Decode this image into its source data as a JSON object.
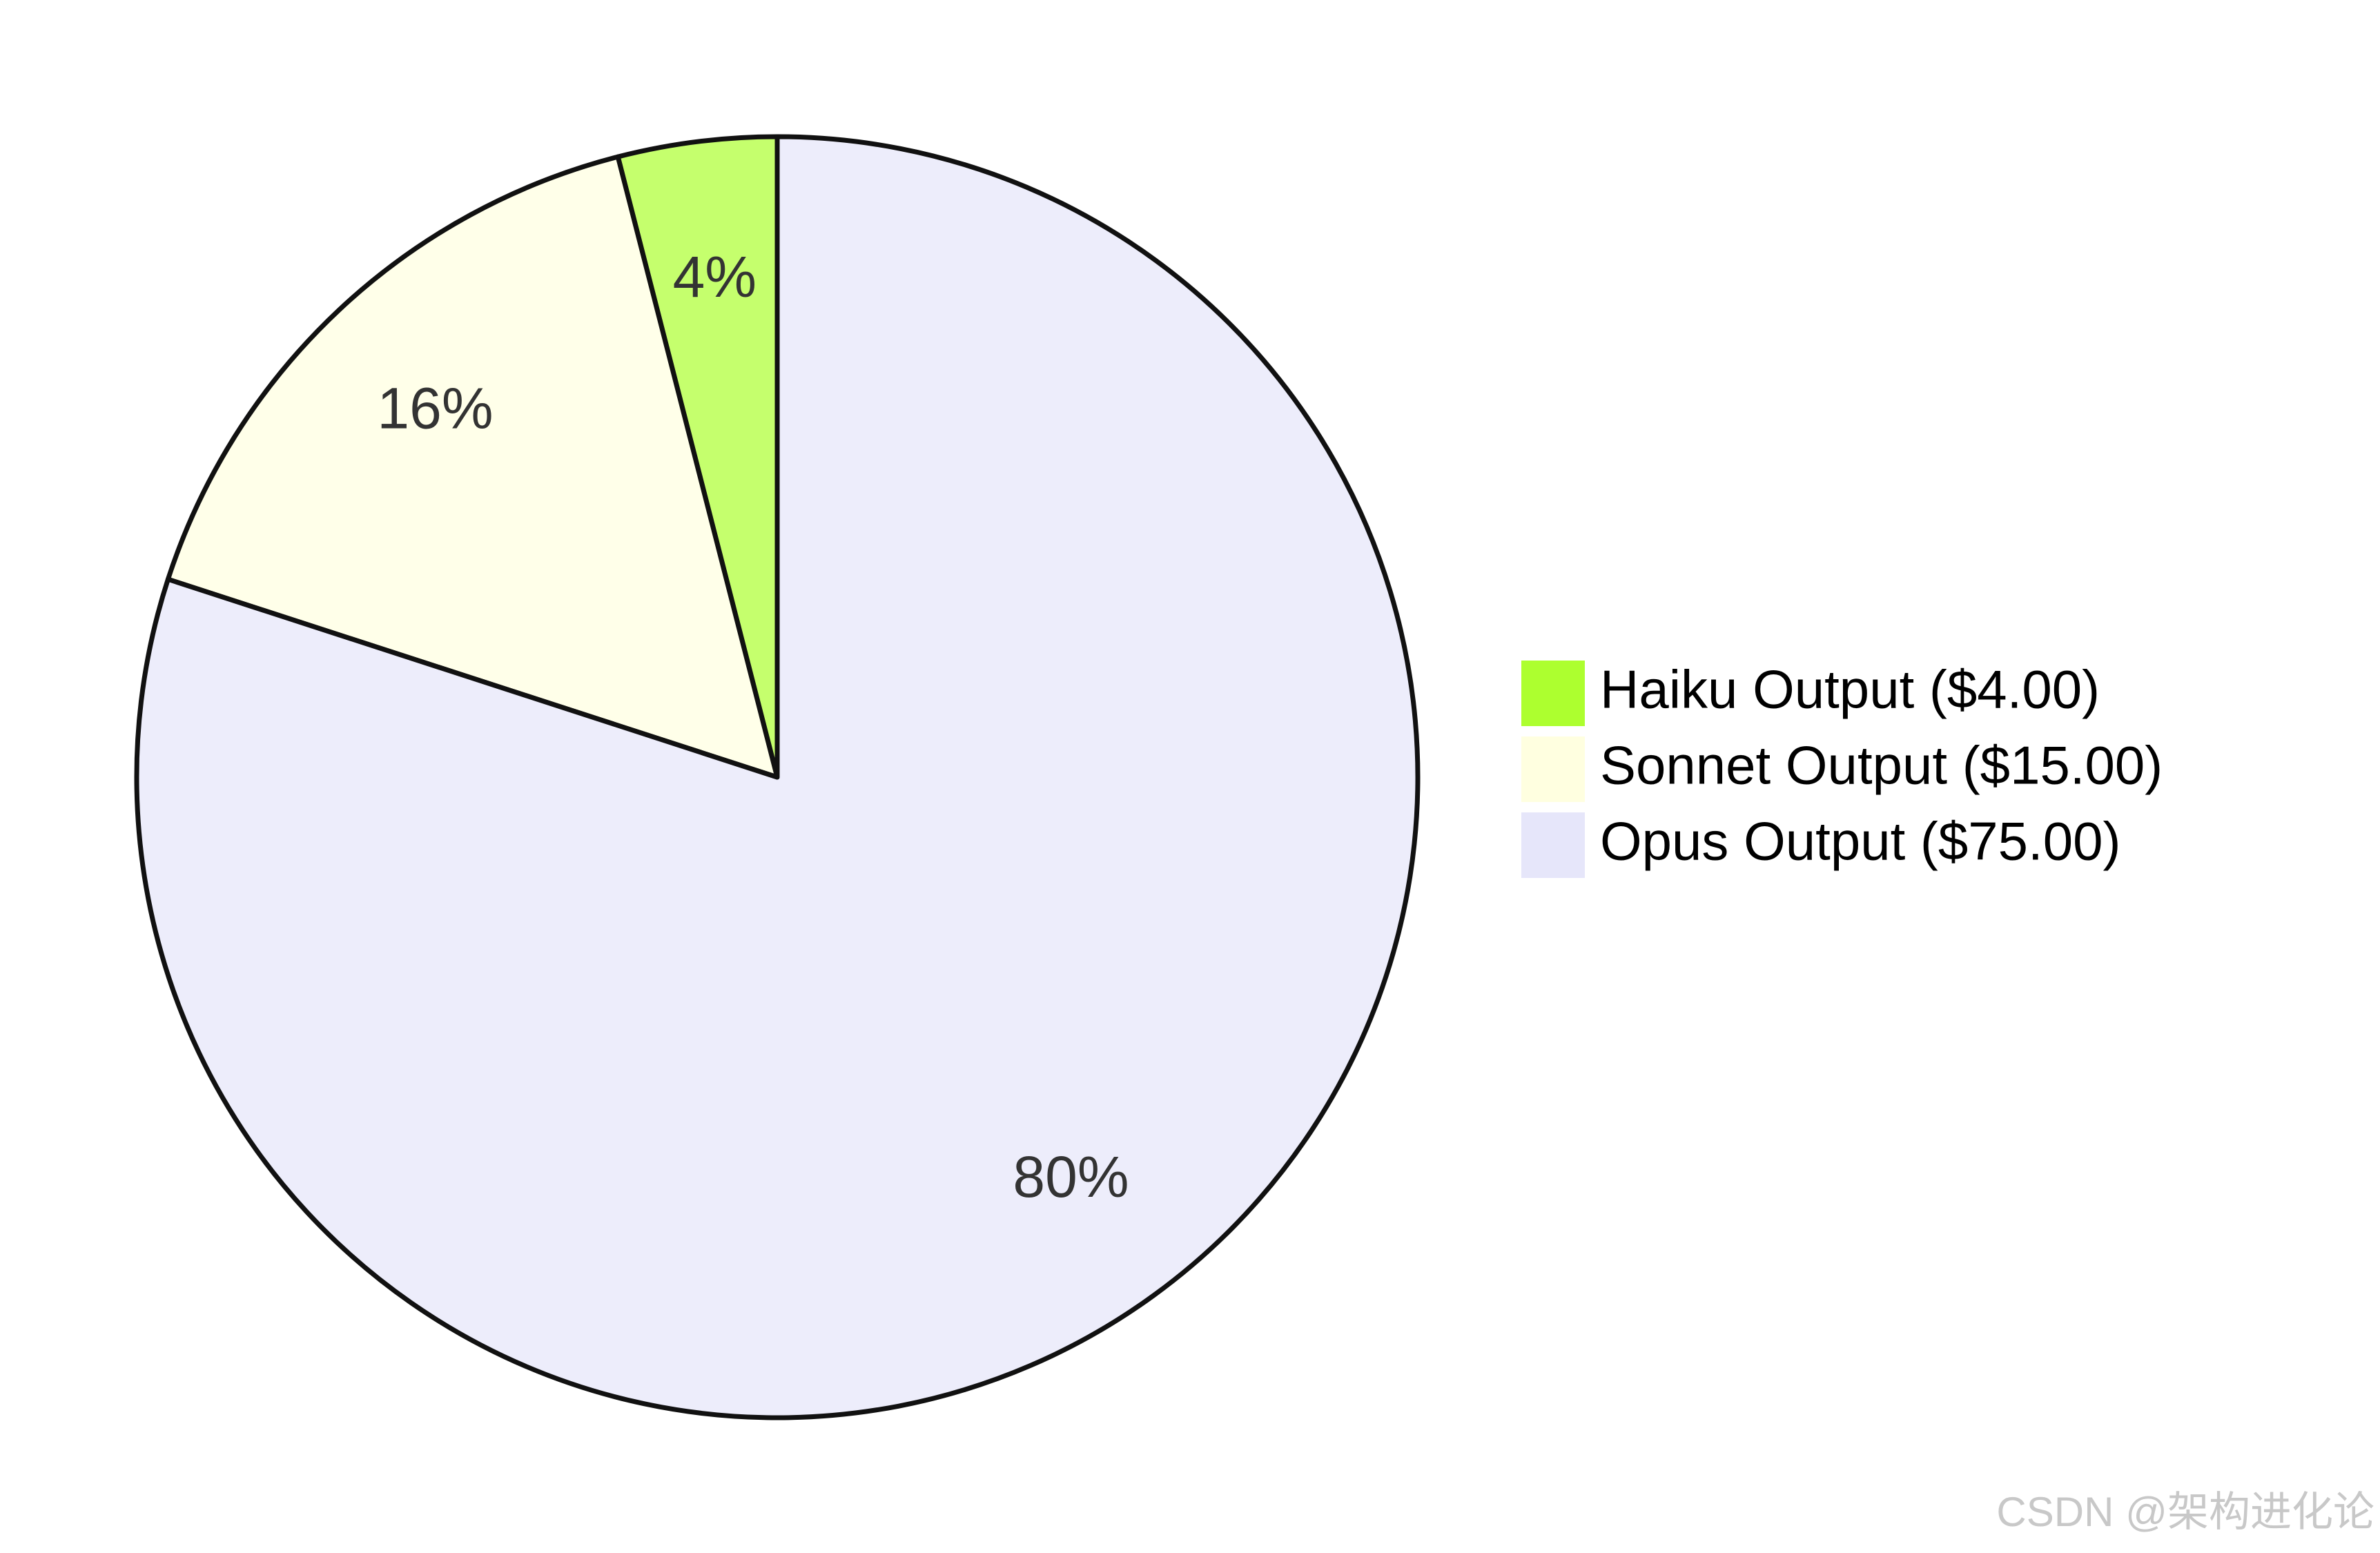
{
  "chart_data": {
    "type": "pie",
    "categories": [
      "Haiku Output ($4.00)",
      "Sonnet Output ($15.00)",
      "Opus Output ($75.00)"
    ],
    "values": [
      4,
      16,
      80
    ],
    "value_labels": [
      "4%",
      "16%",
      "80%"
    ],
    "colors": [
      "#adff2f",
      "#ffffe0",
      "#e6e6fa"
    ],
    "legend": "right"
  },
  "watermark": "CSDN @架构进化论"
}
